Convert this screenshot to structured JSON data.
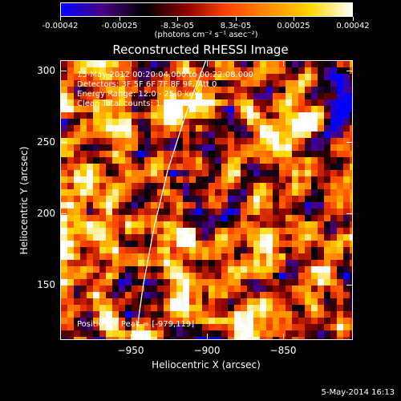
{
  "colorbar": {
    "tick_labels": [
      "-0.00042",
      "-0.00025",
      "-8.3e-05",
      "8.3e-05",
      "0.00025",
      "0.00042"
    ],
    "tick_values": [
      -0.00042,
      -0.00025,
      -8.3e-05,
      8.3e-05,
      0.00025,
      0.00042
    ],
    "units": "(photons cm⁻² s⁻¹ asec⁻²)",
    "colors": [
      "#0000ff",
      "#4a0082",
      "#000000",
      "#8b0000",
      "#ff4500",
      "#ff8c00",
      "#ffd700",
      "#ffffff"
    ]
  },
  "title": "Reconstructed RHESSI Image",
  "annotations": {
    "time": "15-May-2012 00:20:04.000 to 00:22:08.000",
    "detectors": "Detectors: 3F 5F 6F 7F 8F 9F, Att 0",
    "energy": "Energy Range: 12.0 - 25.0 keV",
    "clean": "Clean     Total counts: 1.70E+03",
    "peak": "Position of Peak = [-979,119]"
  },
  "chart_data": {
    "type": "heatmap",
    "title": "Reconstructed RHESSI Image",
    "xlabel": "Heliocentric X (arcsec)",
    "ylabel": "Heliocentric Y (arcsec)",
    "xlim": [
      -996,
      -805
    ],
    "ylim": [
      112,
      307
    ],
    "x_ticks": [
      -950,
      -900,
      -850
    ],
    "y_ticks": [
      150,
      200,
      250,
      300
    ],
    "x_tick_labels": [
      "−950",
      "−900",
      "−850"
    ],
    "y_tick_labels": [
      "150",
      "200",
      "250",
      "300"
    ],
    "colorbar_range": [
      -0.00042,
      0.00042
    ],
    "peak_position": [
      -979,
      119
    ],
    "limb_curve": {
      "x": [
        -947,
        -942,
        -935,
        -926,
        -917,
        -909,
        -901
      ],
      "y": [
        112,
        150,
        190,
        230,
        260,
        285,
        307
      ]
    },
    "grid": false
  },
  "footer": {
    "date": "5-May-2014 16:13"
  }
}
